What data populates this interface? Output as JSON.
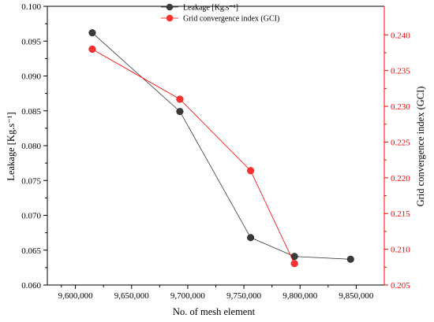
{
  "chart_data": {
    "type": "line",
    "xlabel": "No. of mesh element",
    "ylabel": "Leakage [Kg.s⁻¹]",
    "y2label": "Grid convergence index (GCI)",
    "xlim": [
      9575000,
      9875000
    ],
    "ylim": [
      0.06,
      0.1
    ],
    "y2lim": [
      0.205,
      0.244
    ],
    "x_ticks": [
      9600000,
      9650000,
      9700000,
      9750000,
      9800000,
      9850000
    ],
    "x_tick_labels": [
      "9,600,000",
      "9,650,000",
      "9,700,000",
      "9,750,000",
      "9,800,000",
      "9,850,000"
    ],
    "y_ticks": [
      0.06,
      0.065,
      0.07,
      0.075,
      0.08,
      0.085,
      0.09,
      0.095,
      0.1
    ],
    "y_tick_labels": [
      "0.060",
      "0.065",
      "0.070",
      "0.075",
      "0.080",
      "0.085",
      "0.090",
      "0.095",
      "0.100"
    ],
    "y2_ticks": [
      0.205,
      0.21,
      0.215,
      0.22,
      0.225,
      0.23,
      0.235,
      0.24
    ],
    "y2_tick_labels": [
      "0.205",
      "0.210",
      "0.215",
      "0.220",
      "0.225",
      "0.230",
      "0.235",
      "0.240"
    ],
    "grid": false,
    "legend_position": "top-center",
    "series": [
      {
        "name": "Leakage [Kg.s⁻¹]",
        "axis": "left",
        "color": "#3a3a3a",
        "x": [
          9615000,
          9693000,
          9756000,
          9795000,
          9845000
        ],
        "y": [
          0.0962,
          0.0849,
          0.0668,
          0.0641,
          0.0637
        ]
      },
      {
        "name": "Grid convergence index (GCI)",
        "axis": "right",
        "color": "#ff0000",
        "x": [
          9615000,
          9693000,
          9756000,
          9795000
        ],
        "y": [
          0.238,
          0.231,
          0.221,
          0.208
        ]
      }
    ]
  }
}
